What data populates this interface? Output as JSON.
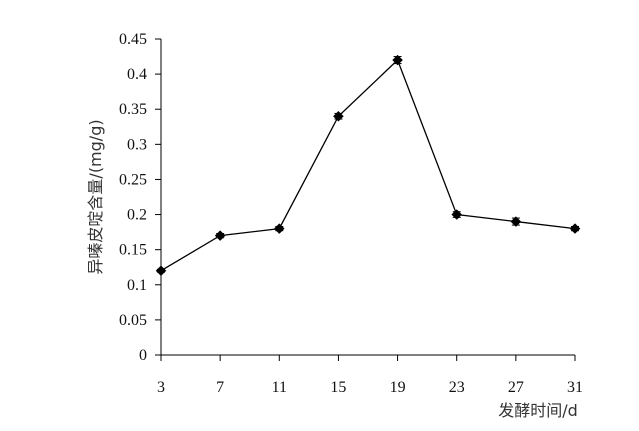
{
  "chart_data": {
    "type": "line",
    "x": [
      3,
      7,
      11,
      15,
      19,
      23,
      27,
      31
    ],
    "series": [
      {
        "values": [
          0.12,
          0.17,
          0.18,
          0.34,
          0.42,
          0.2,
          0.19,
          0.18
        ],
        "errors": [
          0.002,
          0.003,
          0.003,
          0.004,
          0.005,
          0.004,
          0.005,
          0.003
        ],
        "color": "#000000",
        "marker": "diamond"
      }
    ],
    "xlabel": "发酵时间/d",
    "ylabel": "异嗪皮啶含量/(mg/g)",
    "xticks": [
      "3",
      "7",
      "11",
      "15",
      "19",
      "23",
      "27",
      "31"
    ],
    "yticks": [
      "0",
      "0.05",
      "0.1",
      "0.15",
      "0.2",
      "0.25",
      "0.3",
      "0.35",
      "0.4",
      "0.45"
    ],
    "ylim": [
      0,
      0.45
    ],
    "grid": false
  }
}
